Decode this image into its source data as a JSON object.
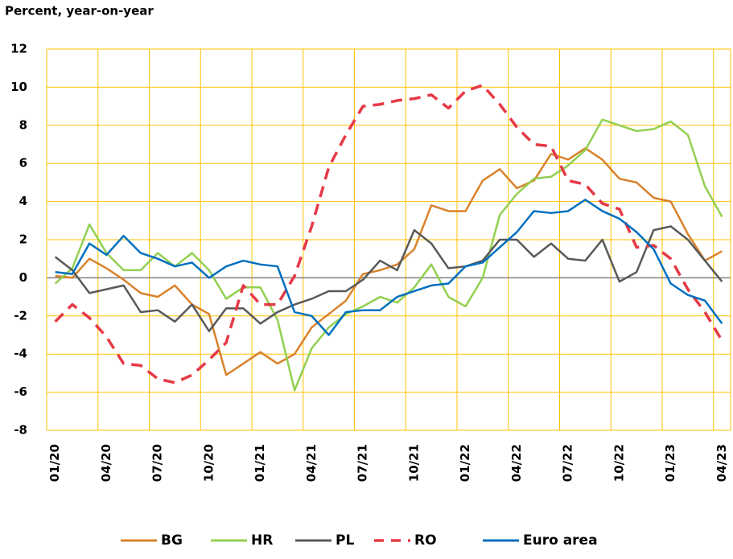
{
  "chart_data": {
    "type": "line",
    "title": "Percent, year-on-year",
    "categories": [
      "01/20",
      null,
      null,
      "04/20",
      null,
      null,
      "07/20",
      null,
      null,
      "10/20",
      null,
      null,
      "01/21",
      null,
      null,
      "04/21",
      null,
      null,
      "07/21",
      null,
      null,
      "10/21",
      null,
      null,
      "01/22",
      null,
      null,
      "04/22",
      null,
      null,
      "07/22",
      null,
      null,
      "10/22",
      null,
      null,
      "01/23",
      null,
      null,
      "04/23"
    ],
    "ylim": [
      -8,
      12
    ],
    "yticks": [
      -8,
      -6,
      -4,
      -2,
      0,
      2,
      4,
      6,
      8,
      10,
      12
    ],
    "grid": true,
    "grid_color": "#ffc000",
    "legend": "bottom",
    "series": [
      {
        "name": "BG",
        "color": "#d9822b",
        "dashed": false,
        "values": [
          0.1,
          0,
          1.0,
          0.5,
          -0.1,
          -0.8,
          -1.0,
          -0.4,
          -1.4,
          -1.9,
          -5.1,
          -4.5,
          -3.9,
          -4.5,
          -4.0,
          -2.6,
          -1.9,
          -1.2,
          0.2,
          0.4,
          0.7,
          1.5,
          3.8,
          3.5,
          3.5,
          5.1,
          5.7,
          4.7,
          5.1,
          6.5,
          6.2,
          6.8,
          6.2,
          5.2,
          5.0,
          4.2,
          4.0,
          2.3,
          0.9,
          1.4
        ]
      },
      {
        "name": "HR",
        "color": "#92d050",
        "dashed": false,
        "values": [
          -0.3,
          0.5,
          2.8,
          1.3,
          0.4,
          0.4,
          1.3,
          0.6,
          1.3,
          0.4,
          -1.1,
          -0.5,
          -0.5,
          -2.2,
          -5.9,
          -3.7,
          -2.6,
          -1.9,
          -1.5,
          -1.0,
          -1.3,
          -0.5,
          0.7,
          -1.0,
          -1.5,
          0.0,
          3.3,
          4.4,
          5.2,
          5.3,
          5.9,
          6.7,
          8.3,
          8.0,
          7.7,
          7.8,
          8.2,
          7.5,
          4.8,
          3.2
        ]
      },
      {
        "name": "PL",
        "color": "#595959",
        "dashed": false,
        "values": [
          1.1,
          0.4,
          -0.8,
          -0.6,
          -0.4,
          -1.8,
          -1.7,
          -2.3,
          -1.4,
          -2.8,
          -1.6,
          -1.6,
          -2.4,
          -1.8,
          -1.4,
          -1.1,
          -0.7,
          -0.7,
          -0.1,
          0.9,
          0.4,
          2.5,
          1.8,
          0.5,
          0.6,
          0.9,
          2.0,
          2.0,
          1.1,
          1.8,
          1.0,
          0.9,
          2.0,
          -0.2,
          0.3,
          2.5,
          2.7,
          2.0,
          0.9,
          -0.2
        ]
      },
      {
        "name": "RO",
        "color": "#e63946",
        "dashed": true,
        "values": [
          -2.3,
          -1.4,
          -2.1,
          -3.1,
          -4.5,
          -4.6,
          -5.3,
          -5.5,
          -5.1,
          -4.3,
          -3.4,
          -0.4,
          -1.4,
          -1.4,
          0.1,
          2.7,
          5.8,
          7.5,
          9.0,
          9.1,
          9.3,
          9.4,
          9.6,
          8.9,
          9.8,
          10.1,
          9.1,
          7.9,
          7.0,
          6.9,
          5.1,
          4.9,
          3.9,
          3.6,
          1.6,
          1.7,
          1.0,
          -0.6,
          -1.8,
          -3.3
        ]
      },
      {
        "name": "Euro area",
        "color": "#0070c0",
        "dashed": false,
        "values": [
          0.3,
          0.2,
          1.8,
          1.2,
          2.2,
          1.3,
          1.0,
          0.6,
          0.8,
          0.0,
          0.6,
          0.9,
          0.7,
          0.6,
          -1.8,
          -2.0,
          -3.0,
          -1.8,
          -1.7,
          -1.7,
          -1.0,
          -0.7,
          -0.4,
          -0.3,
          0.6,
          0.8,
          1.6,
          2.4,
          3.5,
          3.4,
          3.5,
          4.1,
          3.5,
          3.1,
          2.4,
          1.5,
          -0.3,
          -0.9,
          -1.2,
          -2.4
        ]
      }
    ]
  }
}
